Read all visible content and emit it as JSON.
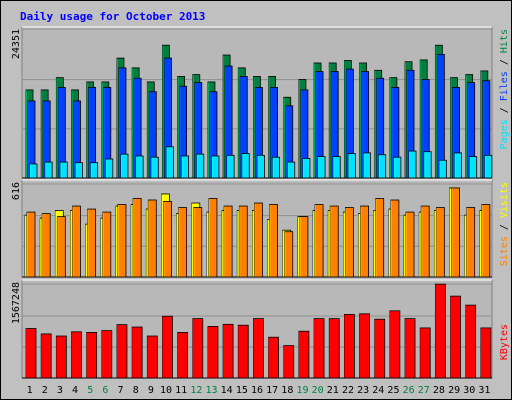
{
  "colors": {
    "background": "#c0c0c0",
    "title": "#0000ff",
    "hits": "#008040",
    "files": "#0040ff",
    "pages": "#00e0ff",
    "visits": "#ffff00",
    "sites": "#ff8000",
    "kbytes": "#ff0000",
    "weekend": "#008040",
    "weekday": "#000000"
  },
  "chart_data": {
    "type": "bar",
    "title": "Daily usage for October 2013",
    "categories": [
      "1",
      "2",
      "3",
      "4",
      "5",
      "6",
      "7",
      "8",
      "9",
      "10",
      "11",
      "12",
      "13",
      "14",
      "15",
      "16",
      "17",
      "18",
      "19",
      "20",
      "21",
      "22",
      "23",
      "24",
      "25",
      "26",
      "27",
      "28",
      "29",
      "30",
      "31"
    ],
    "weekend_days": [
      "5",
      "6",
      "12",
      "13",
      "19",
      "20",
      "26",
      "27"
    ],
    "panels": [
      {
        "name": "pages-files-hits",
        "max_label": "24351",
        "ylim": [
          0,
          24351
        ],
        "series": [
          {
            "name": "Hits",
            "values": [
              14400,
              14400,
              16400,
              14400,
              15700,
              15700,
              19600,
              18000,
              15700,
              21700,
              16600,
              16900,
              15700,
              20100,
              18000,
              16600,
              16600,
              13200,
              16100,
              18800,
              18800,
              19200,
              18800,
              17600,
              16400,
              19000,
              19300,
              21700,
              16400,
              16900,
              17500
            ]
          },
          {
            "name": "Files",
            "values": [
              12600,
              12600,
              14800,
              12600,
              14800,
              14800,
              18000,
              16300,
              14100,
              19600,
              15000,
              15600,
              14100,
              18300,
              16600,
              14800,
              14800,
              11800,
              14400,
              17400,
              17400,
              17800,
              17400,
              16300,
              14800,
              17600,
              16100,
              20200,
              14800,
              15600,
              15900
            ]
          },
          {
            "name": "Pages",
            "values": [
              2300,
              2600,
              2600,
              2500,
              2500,
              3100,
              3900,
              3600,
              3400,
              5100,
              3600,
              3900,
              3600,
              3700,
              4000,
              3700,
              3400,
              2600,
              3200,
              3500,
              3500,
              4000,
              4100,
              3800,
              3400,
              4400,
              4300,
              2900,
              4100,
              3500,
              3700
            ]
          }
        ]
      },
      {
        "name": "visits-sites",
        "max_label": "616",
        "ylim": [
          0,
          616
        ],
        "series": [
          {
            "name": "Visits",
            "values": [
              410,
              390,
              440,
              440,
              350,
              390,
              470,
              480,
              450,
              550,
              420,
              490,
              430,
              440,
              440,
              440,
              380,
              310,
              400,
              440,
              440,
              430,
              420,
              440,
              450,
              410,
              430,
              440,
              590,
              410,
              440
            ]
          },
          {
            "name": "Sites",
            "values": [
              430,
              420,
              400,
              470,
              450,
              430,
              480,
              520,
              510,
              500,
              460,
              460,
              520,
              470,
              470,
              490,
              480,
              300,
              400,
              480,
              470,
              460,
              470,
              520,
              510,
              430,
              470,
              460,
              590,
              460,
              480
            ]
          }
        ]
      },
      {
        "name": "kbytes",
        "max_label": "1567248",
        "ylim": [
          0,
          1567248
        ],
        "series": [
          {
            "name": "KBytes",
            "values": [
              825000,
              735000,
              700000,
              770000,
              760000,
              790000,
              890000,
              850000,
              700000,
              1030000,
              760000,
              990000,
              860000,
              895000,
              880000,
              990000,
              680000,
              540000,
              780000,
              990000,
              990000,
              1060000,
              1070000,
              980000,
              1120000,
              990000,
              835000,
              1565000,
              1365000,
              1215000,
              835000
            ]
          }
        ]
      }
    ],
    "right_labels": {
      "panel1": [
        "Pages",
        "Files",
        "Hits"
      ],
      "panel2": [
        "Sites",
        "Visits"
      ],
      "panel3": [
        "KBytes"
      ]
    },
    "separator": "/"
  }
}
